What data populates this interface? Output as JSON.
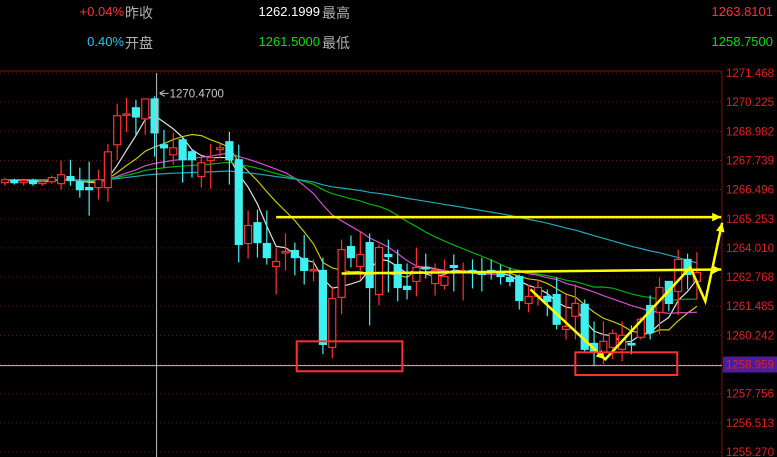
{
  "header": {
    "row1": {
      "change_pct": "+0.04%",
      "prev_close_label": "昨收",
      "prev_close_value": "1262.1999",
      "high_label": "最高",
      "high_value": "1263.8101"
    },
    "row2": {
      "amplitude_pct": "0.40%",
      "open_label": "开盘",
      "open_value": "1261.5000",
      "low_label": "最低",
      "low_value": "1258.7500"
    },
    "colors": {
      "up": "#ff3030",
      "down": "#00e0e0",
      "neutral": "#ffffff",
      "low": "#00e000"
    }
  },
  "chart_data": {
    "type": "candlestick",
    "y_axis_ticks": [
      "1271.468",
      "1270.225",
      "1268.982",
      "1267.739",
      "1266.496",
      "1265.253",
      "1264.010",
      "1262.768",
      "1261.485",
      "1260.242",
      "1258.959",
      "1257.756",
      "1256.513",
      "1255.270"
    ],
    "ylim": [
      1255.27,
      1271.468
    ],
    "grid": true,
    "crosshair": {
      "candle_index": 16,
      "price": 1258.959,
      "price_label": "1258.959",
      "high_label": "1270.4700"
    },
    "up_color": "#ff3030",
    "down_color": "#40f0f0",
    "candles_ohlc": [
      [
        1266.78,
        1267.0,
        1266.65,
        1266.91
      ],
      [
        1266.87,
        1266.95,
        1266.7,
        1266.78
      ],
      [
        1266.78,
        1266.95,
        1266.65,
        1266.87
      ],
      [
        1266.87,
        1266.95,
        1266.65,
        1266.74
      ],
      [
        1266.74,
        1266.91,
        1266.65,
        1266.82
      ],
      [
        1266.82,
        1267.08,
        1266.74,
        1267.0
      ],
      [
        1266.74,
        1267.72,
        1266.48,
        1267.12
      ],
      [
        1267.04,
        1267.76,
        1266.65,
        1266.87
      ],
      [
        1266.82,
        1267.42,
        1266.14,
        1266.48
      ],
      [
        1266.57,
        1267.68,
        1265.37,
        1266.48
      ],
      [
        1266.57,
        1267.33,
        1266.06,
        1266.91
      ],
      [
        1266.57,
        1268.44,
        1265.97,
        1268.1
      ],
      [
        1268.4,
        1270.15,
        1267.76,
        1269.64
      ],
      [
        1269.68,
        1270.4,
        1268.95,
        1269.72
      ],
      [
        1269.98,
        1270.32,
        1268.83,
        1269.59
      ],
      [
        1269.51,
        1270.36,
        1268.83,
        1270.36
      ],
      [
        1270.36,
        1270.47,
        1267.89,
        1268.91
      ],
      [
        1268.4,
        1269.04,
        1267.42,
        1268.27
      ],
      [
        1267.97,
        1268.91,
        1267.55,
        1268.27
      ],
      [
        1268.61,
        1268.7,
        1266.78,
        1267.76
      ],
      [
        1268.1,
        1268.19,
        1267.0,
        1267.76
      ],
      [
        1267.04,
        1267.89,
        1266.57,
        1267.63
      ],
      [
        1267.72,
        1268.44,
        1266.52,
        1267.85
      ],
      [
        1268.19,
        1268.44,
        1267.85,
        1268.27
      ],
      [
        1268.53,
        1268.95,
        1266.7,
        1267.76
      ],
      [
        1267.76,
        1268.4,
        1263.37,
        1264.14
      ],
      [
        1264.18,
        1265.59,
        1263.54,
        1264.95
      ],
      [
        1265.07,
        1265.63,
        1263.58,
        1264.22
      ],
      [
        1264.18,
        1265.59,
        1263.28,
        1263.58
      ],
      [
        1263.2,
        1264.01,
        1262.0,
        1263.41
      ],
      [
        1263.79,
        1264.61,
        1263.03,
        1263.84
      ],
      [
        1263.88,
        1264.22,
        1262.82,
        1263.58
      ],
      [
        1263.54,
        1264.55,
        1262.43,
        1263.03
      ],
      [
        1263.03,
        1263.5,
        1262.56,
        1263.07
      ],
      [
        1263.03,
        1263.58,
        1259.45,
        1259.87
      ],
      [
        1259.74,
        1262.35,
        1259.28,
        1261.83
      ],
      [
        1261.88,
        1264.35,
        1261.16,
        1263.92
      ],
      [
        1264.05,
        1264.52,
        1263.16,
        1263.58
      ],
      [
        1263.2,
        1264.69,
        1262.64,
        1263.71
      ],
      [
        1264.22,
        1264.61,
        1260.68,
        1262.3
      ],
      [
        1262.0,
        1264.14,
        1261.53,
        1264.01
      ],
      [
        1263.71,
        1264.35,
        1262.09,
        1263.62
      ],
      [
        1263.28,
        1263.92,
        1261.71,
        1262.3
      ],
      [
        1262.35,
        1263.33,
        1261.79,
        1262.22
      ],
      [
        1262.56,
        1264.01,
        1261.92,
        1263.16
      ],
      [
        1263.16,
        1263.75,
        1262.69,
        1263.11
      ],
      [
        1262.47,
        1263.33,
        1261.96,
        1263.03
      ],
      [
        1262.39,
        1263.5,
        1262.22,
        1262.77
      ],
      [
        1263.24,
        1263.71,
        1262.13,
        1263.16
      ],
      [
        1262.94,
        1263.37,
        1261.75,
        1262.99
      ],
      [
        1263.03,
        1263.5,
        1262.26,
        1262.94
      ],
      [
        1262.94,
        1263.58,
        1262.13,
        1262.86
      ],
      [
        1263.03,
        1263.5,
        1262.64,
        1262.94
      ],
      [
        1262.9,
        1263.28,
        1262.43,
        1262.77
      ],
      [
        1262.73,
        1263.16,
        1262.35,
        1262.56
      ],
      [
        1262.77,
        1262.86,
        1261.36,
        1261.75
      ],
      [
        1261.62,
        1262.43,
        1261.24,
        1261.92
      ],
      [
        1261.92,
        1262.64,
        1261.53,
        1262.3
      ],
      [
        1261.92,
        1262.22,
        1261.07,
        1261.71
      ],
      [
        1262.0,
        1262.73,
        1260.51,
        1260.73
      ],
      [
        1260.51,
        1262.0,
        1260.08,
        1260.64
      ],
      [
        1261.07,
        1262.43,
        1260.08,
        1261.62
      ],
      [
        1261.58,
        1261.79,
        1259.57,
        1259.66
      ],
      [
        1259.91,
        1260.85,
        1258.93,
        1259.53
      ],
      [
        1259.53,
        1260.85,
        1259.02,
        1260.0
      ],
      [
        1259.74,
        1260.51,
        1259.23,
        1260.34
      ],
      [
        1259.66,
        1260.85,
        1259.15,
        1260.26
      ],
      [
        1259.91,
        1260.68,
        1259.45,
        1259.87
      ],
      [
        1260.17,
        1261.03,
        1260.08,
        1260.94
      ],
      [
        1261.53,
        1261.96,
        1260.08,
        1260.38
      ],
      [
        1261.24,
        1262.73,
        1260.3,
        1262.3
      ],
      [
        1262.56,
        1262.56,
        1261.28,
        1261.62
      ],
      [
        1262.13,
        1263.92,
        1261.11,
        1263.5
      ],
      [
        1263.5,
        1263.75,
        1262.22,
        1262.86
      ],
      [
        1262.56,
        1263.81,
        1261.79,
        1262.94
      ]
    ],
    "moving_averages": [
      {
        "period": 5,
        "color": "#e0e0e0"
      },
      {
        "period": 10,
        "color": "#c8c800"
      },
      {
        "period": 20,
        "color": "#d050d0"
      },
      {
        "period": 30,
        "color": "#00b000"
      },
      {
        "period": 60,
        "color": "#20a8b8"
      }
    ],
    "annotations": {
      "color": "#ffff00",
      "box_color": "#ff3030",
      "arrow_lines": [
        {
          "from": [
            29,
            1265.31
          ],
          "to": [
            76.6,
            1265.31
          ]
        },
        {
          "from": [
            36,
            1262.9
          ],
          "to": [
            76.6,
            1263.07
          ]
        }
      ],
      "zigzag": [
        [
          56.2,
          1262.22
        ],
        [
          64.2,
          1259.23
        ],
        [
          73.3,
          1263.16
        ],
        [
          74.9,
          1261.71
        ],
        [
          76.7,
          1265.07
        ]
      ],
      "boxes": [
        {
          "from_index": 31.2,
          "to_index": 42.5,
          "top": 1260.0,
          "bottom": 1258.72
        },
        {
          "from_index": 61.0,
          "to_index": 71.9,
          "top": 1259.53,
          "bottom": 1258.56
        }
      ]
    }
  }
}
